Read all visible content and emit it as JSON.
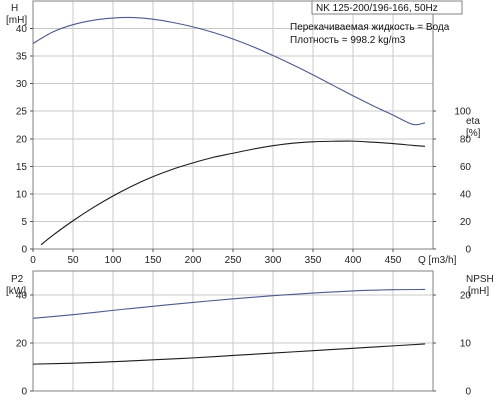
{
  "chart_data": [
    {
      "name": "pump-performance",
      "type": "line",
      "title": "NK 125-200/196-166, 50Hz",
      "annotations": [
        "Перекачиваемая жидкость = Вода",
        "Плотность = 998.2 kg/m3"
      ],
      "xlabel": "Q [m3/h]",
      "xlim": [
        0,
        500
      ],
      "x_ticks": [
        "0",
        "50",
        "100",
        "150",
        "200",
        "250",
        "300",
        "350",
        "400",
        "450"
      ],
      "left_axis": {
        "label_top": "H",
        "label_unit": "[mH]",
        "ylim": [
          0,
          45
        ],
        "ticks": [
          "0",
          "5",
          "10",
          "15",
          "20",
          "25",
          "30",
          "35",
          "40"
        ]
      },
      "right_axis": {
        "label_top": "eta",
        "label_unit": "[%]",
        "ylim": [
          0,
          180
        ],
        "ticks": [
          "0",
          "20",
          "40",
          "60",
          "80",
          "100"
        ]
      },
      "grid": true,
      "series": [
        {
          "axis": "left",
          "color": "#4a5a8c",
          "x": [
            0,
            25,
            50,
            75,
            100,
            125,
            150,
            175,
            200,
            225,
            250,
            275,
            300,
            325,
            350,
            375,
            400,
            425,
            450,
            475,
            490
          ],
          "y": [
            37.3,
            39.4,
            40.7,
            41.5,
            41.9,
            42.0,
            41.7,
            41.1,
            40.3,
            39.3,
            38.1,
            36.7,
            35.1,
            33.4,
            31.6,
            29.7,
            27.8,
            26.0,
            24.3,
            22.6,
            22.9
          ]
        },
        {
          "axis": "right",
          "color": "#1a1a1a",
          "x": [
            10,
            25,
            50,
            75,
            100,
            125,
            150,
            175,
            200,
            225,
            250,
            275,
            300,
            325,
            350,
            375,
            400,
            425,
            450,
            475,
            490
          ],
          "y": [
            3,
            10,
            20.5,
            30,
            38.5,
            46,
            52.5,
            58,
            62.5,
            66.5,
            69.5,
            72.5,
            75,
            76.8,
            77.8,
            78.2,
            78.3,
            77.5,
            76.5,
            75.2,
            74.5
          ]
        }
      ]
    },
    {
      "name": "power-npsh",
      "type": "line",
      "xlim": [
        0,
        500
      ],
      "left_axis": {
        "label_top": "P2",
        "label_unit": "[kW]",
        "ylim": [
          0,
          50
        ],
        "ticks": [
          "0",
          "20",
          "40"
        ]
      },
      "right_axis": {
        "label_top": "NPSH",
        "label_unit": "[mH]",
        "ylim": [
          0,
          25
        ],
        "ticks": [
          "0",
          "10",
          "20"
        ]
      },
      "grid": true,
      "series": [
        {
          "axis": "left",
          "color": "#4a5a8c",
          "x": [
            0,
            50,
            100,
            150,
            200,
            250,
            300,
            350,
            400,
            450,
            490
          ],
          "y": [
            30.3,
            31.8,
            33.6,
            35.3,
            36.9,
            38.4,
            39.7,
            40.8,
            41.7,
            42.2,
            42.3
          ]
        },
        {
          "axis": "right",
          "color": "#1a1a1a",
          "x": [
            0,
            50,
            100,
            150,
            200,
            250,
            300,
            350,
            400,
            450,
            490
          ],
          "y": [
            5.6,
            5.8,
            6.1,
            6.5,
            6.9,
            7.4,
            7.9,
            8.4,
            8.9,
            9.4,
            9.8
          ]
        }
      ]
    }
  ]
}
